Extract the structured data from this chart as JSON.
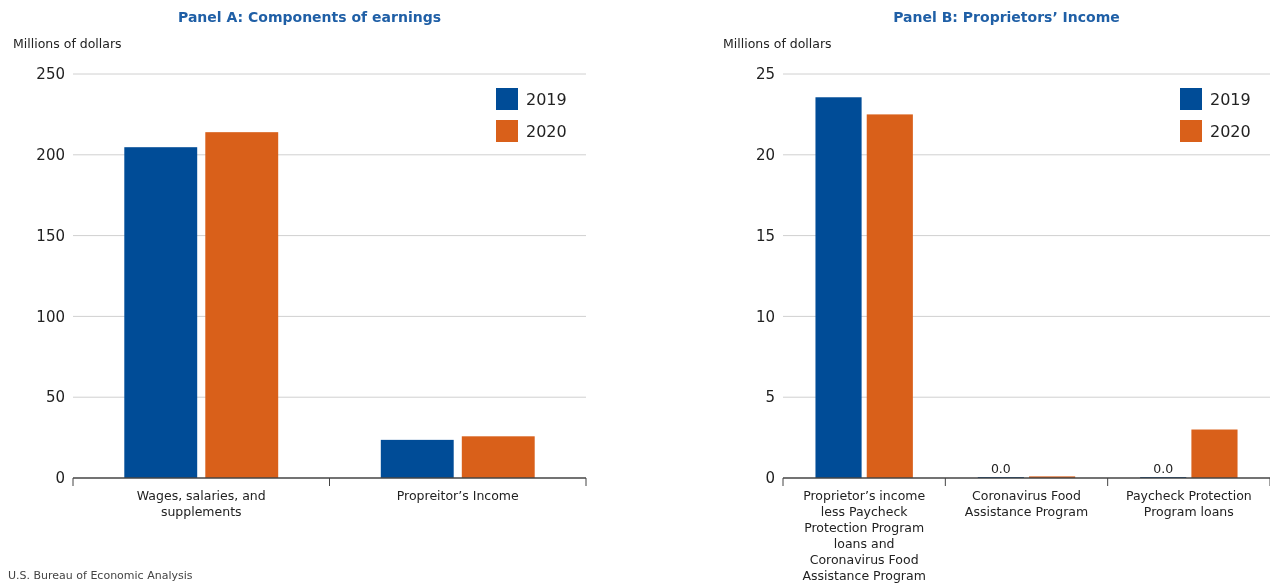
{
  "chart_data": [
    {
      "type": "bar",
      "title": "Panel A: Components of earnings",
      "ylabel": "Millions of dollars",
      "categories": [
        "Wages, salaries, and supplements",
        "Propreitor’s Income"
      ],
      "series": [
        {
          "name": "2019",
          "color": "#004c97",
          "values": [
            204.7,
            23.6
          ]
        },
        {
          "name": "2020",
          "color": "#d9601a",
          "values": [
            214.0,
            25.8
          ]
        }
      ],
      "ylim": [
        0,
        250
      ],
      "yticks": [
        0,
        50,
        100,
        150,
        200,
        250
      ],
      "grid": "y",
      "legend": "top right",
      "annotations": [
        "U.S. Bureau of Economic Analysis"
      ]
    },
    {
      "type": "bar",
      "title": "Panel B: Proprietors’ Income",
      "ylabel": "Millions of dollars",
      "categories": [
        "Proprietor’s income less Paycheck Protection Program loans and Coronavirus Food Assistance Program",
        "Coronavirus Food Assistance Program",
        "Paycheck Protection Program loans"
      ],
      "series": [
        {
          "name": "2019",
          "color": "#004c97",
          "values": [
            23.56,
            0.0,
            0.0
          ],
          "value_labels": [
            null,
            "0.0",
            "0.0"
          ]
        },
        {
          "name": "2020",
          "color": "#d9601a",
          "values": [
            22.5,
            0.1,
            3.0
          ]
        }
      ],
      "ylim": [
        0,
        25
      ],
      "yticks": [
        0,
        5,
        10,
        15,
        20,
        25
      ],
      "grid": "y",
      "legend": "top right"
    }
  ]
}
